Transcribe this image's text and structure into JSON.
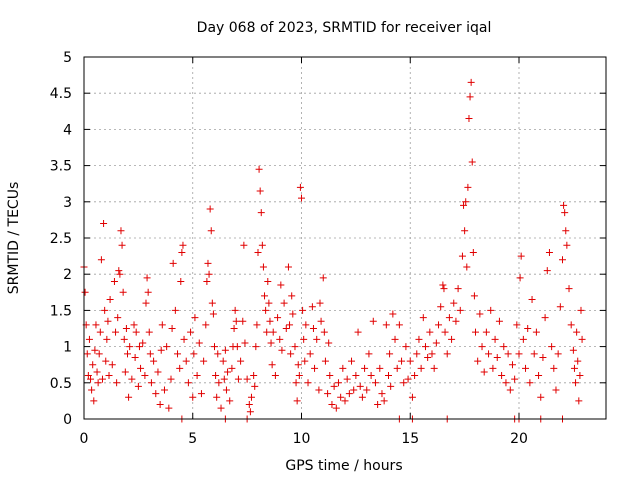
{
  "chart_data": {
    "type": "scatter",
    "title": "Day 068 of 2023, SRMTID for receiver iqal",
    "xlabel": "GPS time / hours",
    "ylabel": "SRMTID / TECUs",
    "xlim": [
      0,
      24
    ],
    "ylim": [
      0,
      5
    ],
    "xticks": [
      0,
      5,
      10,
      15,
      20
    ],
    "xtick_labels": [
      "0",
      "5",
      "10",
      "15",
      "20"
    ],
    "yticks": [
      0,
      0.5,
      1,
      1.5,
      2,
      2.5,
      3,
      3.5,
      4,
      4.5,
      5
    ],
    "ytick_labels": [
      "0",
      "0.5",
      "1",
      "1.5",
      "2",
      "2.5",
      "3",
      "3.5",
      "4",
      "4.5",
      "5"
    ],
    "grid": true,
    "marker": "plus",
    "series": [
      {
        "name": "SRMTID",
        "color": "#e00000",
        "points": [
          [
            0.0,
            2.1
          ],
          [
            0.05,
            1.75
          ],
          [
            0.1,
            1.3
          ],
          [
            0.15,
            0.9
          ],
          [
            0.2,
            0.6
          ],
          [
            0.25,
            1.1
          ],
          [
            0.3,
            0.55
          ],
          [
            0.35,
            0.4
          ],
          [
            0.4,
            0.75
          ],
          [
            0.45,
            0.25
          ],
          [
            0.5,
            0.95
          ],
          [
            0.55,
            1.3
          ],
          [
            0.6,
            0.65
          ],
          [
            0.65,
            0.5
          ],
          [
            0.7,
            0.9
          ],
          [
            0.75,
            1.2
          ],
          [
            0.8,
            2.2
          ],
          [
            0.85,
            0.55
          ],
          [
            0.9,
            2.7
          ],
          [
            0.95,
            1.5
          ],
          [
            1.0,
            0.8
          ],
          [
            1.05,
            1.1
          ],
          [
            1.1,
            1.35
          ],
          [
            1.15,
            0.6
          ],
          [
            1.2,
            1.65
          ],
          [
            1.3,
            0.75
          ],
          [
            1.4,
            1.9
          ],
          [
            1.45,
            1.2
          ],
          [
            1.5,
            0.5
          ],
          [
            1.55,
            1.4
          ],
          [
            1.6,
            2.05
          ],
          [
            1.65,
            2.0
          ],
          [
            1.7,
            2.6
          ],
          [
            1.75,
            2.4
          ],
          [
            1.8,
            1.75
          ],
          [
            1.85,
            1.1
          ],
          [
            1.9,
            0.65
          ],
          [
            1.95,
            1.25
          ],
          [
            2.0,
            0.9
          ],
          [
            2.05,
            0.3
          ],
          [
            2.1,
            1.0
          ],
          [
            2.2,
            0.55
          ],
          [
            2.3,
            1.3
          ],
          [
            2.35,
            0.85
          ],
          [
            2.4,
            1.2
          ],
          [
            2.5,
            0.45
          ],
          [
            2.55,
            1.0
          ],
          [
            2.6,
            0.7
          ],
          [
            2.7,
            1.05
          ],
          [
            2.8,
            0.6
          ],
          [
            2.85,
            1.6
          ],
          [
            2.9,
            1.95
          ],
          [
            2.95,
            1.75
          ],
          [
            3.0,
            1.2
          ],
          [
            3.05,
            0.9
          ],
          [
            3.1,
            0.5
          ],
          [
            3.2,
            0.8
          ],
          [
            3.3,
            0.35
          ],
          [
            3.4,
            0.65
          ],
          [
            3.5,
            0.2
          ],
          [
            3.55,
            0.95
          ],
          [
            3.6,
            1.3
          ],
          [
            3.7,
            0.4
          ],
          [
            3.8,
            1.0
          ],
          [
            3.9,
            0.15
          ],
          [
            4.0,
            0.55
          ],
          [
            4.05,
            1.25
          ],
          [
            4.1,
            2.15
          ],
          [
            4.2,
            1.5
          ],
          [
            4.3,
            0.9
          ],
          [
            4.4,
            0.7
          ],
          [
            4.45,
            1.9
          ],
          [
            4.5,
            2.3
          ],
          [
            4.55,
            2.4
          ],
          [
            4.6,
            1.1
          ],
          [
            4.7,
            0.8
          ],
          [
            4.8,
            0.5
          ],
          [
            4.9,
            1.2
          ],
          [
            5.0,
            0.3
          ],
          [
            5.05,
            0.9
          ],
          [
            5.1,
            1.4
          ],
          [
            5.2,
            0.6
          ],
          [
            5.3,
            1.05
          ],
          [
            5.4,
            0.35
          ],
          [
            5.5,
            0.8
          ],
          [
            5.6,
            1.3
          ],
          [
            5.65,
            1.9
          ],
          [
            5.7,
            2.15
          ],
          [
            5.75,
            2.0
          ],
          [
            5.8,
            2.9
          ],
          [
            5.85,
            2.6
          ],
          [
            5.9,
            1.6
          ],
          [
            5.95,
            1.45
          ],
          [
            6.0,
            1.0
          ],
          [
            6.05,
            0.6
          ],
          [
            6.1,
            0.3
          ],
          [
            6.15,
            0.9
          ],
          [
            6.2,
            0.5
          ],
          [
            6.3,
            0.15
          ],
          [
            6.4,
            0.8
          ],
          [
            6.45,
            0.55
          ],
          [
            6.5,
            0.95
          ],
          [
            6.55,
            0.4
          ],
          [
            6.6,
            0.65
          ],
          [
            6.7,
            0.25
          ],
          [
            6.8,
            0.7
          ],
          [
            6.85,
            1.0
          ],
          [
            6.9,
            1.25
          ],
          [
            6.95,
            1.5
          ],
          [
            7.0,
            1.35
          ],
          [
            7.05,
            1.0
          ],
          [
            7.1,
            0.55
          ],
          [
            7.2,
            0.8
          ],
          [
            7.3,
            1.35
          ],
          [
            7.35,
            2.4
          ],
          [
            7.4,
            1.05
          ],
          [
            7.5,
            0.55
          ],
          [
            7.6,
            0.2
          ],
          [
            7.65,
            0.1
          ],
          [
            7.7,
            0.3
          ],
          [
            7.8,
            0.6
          ],
          [
            7.85,
            0.45
          ],
          [
            7.9,
            1.0
          ],
          [
            7.95,
            1.3
          ],
          [
            8.0,
            2.3
          ],
          [
            8.05,
            3.45
          ],
          [
            8.1,
            3.15
          ],
          [
            8.15,
            2.85
          ],
          [
            8.2,
            2.4
          ],
          [
            8.25,
            2.1
          ],
          [
            8.3,
            1.7
          ],
          [
            8.35,
            1.5
          ],
          [
            8.4,
            1.2
          ],
          [
            8.45,
            1.9
          ],
          [
            8.5,
            1.6
          ],
          [
            8.55,
            1.35
          ],
          [
            8.6,
            1.05
          ],
          [
            8.65,
            0.75
          ],
          [
            8.7,
            1.2
          ],
          [
            8.8,
            0.6
          ],
          [
            8.9,
            1.4
          ],
          [
            9.0,
            1.1
          ],
          [
            9.05,
            1.85
          ],
          [
            9.1,
            0.95
          ],
          [
            9.2,
            1.6
          ],
          [
            9.3,
            1.25
          ],
          [
            9.4,
            2.1
          ],
          [
            9.45,
            1.3
          ],
          [
            9.5,
            0.9
          ],
          [
            9.55,
            1.7
          ],
          [
            9.6,
            1.45
          ],
          [
            9.7,
            1.0
          ],
          [
            9.75,
            0.5
          ],
          [
            9.8,
            0.25
          ],
          [
            9.85,
            0.75
          ],
          [
            9.9,
            0.6
          ],
          [
            9.95,
            3.2
          ],
          [
            10.0,
            3.05
          ],
          [
            10.05,
            1.5
          ],
          [
            10.1,
            1.1
          ],
          [
            10.15,
            0.8
          ],
          [
            10.2,
            1.3
          ],
          [
            10.3,
            0.5
          ],
          [
            10.4,
            0.9
          ],
          [
            10.5,
            1.55
          ],
          [
            10.55,
            1.25
          ],
          [
            10.6,
            0.7
          ],
          [
            10.7,
            1.1
          ],
          [
            10.8,
            0.4
          ],
          [
            10.85,
            1.6
          ],
          [
            10.9,
            1.35
          ],
          [
            11.0,
            1.95
          ],
          [
            11.05,
            1.2
          ],
          [
            11.1,
            0.8
          ],
          [
            11.2,
            0.35
          ],
          [
            11.25,
            1.05
          ],
          [
            11.3,
            0.6
          ],
          [
            11.4,
            0.2
          ],
          [
            11.5,
            0.45
          ],
          [
            11.6,
            0.15
          ],
          [
            11.7,
            0.5
          ],
          [
            11.8,
            0.3
          ],
          [
            11.9,
            0.7
          ],
          [
            12.0,
            0.25
          ],
          [
            12.1,
            0.55
          ],
          [
            12.2,
            0.35
          ],
          [
            12.3,
            0.8
          ],
          [
            12.4,
            0.4
          ],
          [
            12.5,
            0.6
          ],
          [
            12.6,
            1.2
          ],
          [
            12.7,
            0.45
          ],
          [
            12.8,
            0.3
          ],
          [
            12.9,
            0.7
          ],
          [
            13.0,
            0.4
          ],
          [
            13.1,
            0.9
          ],
          [
            13.2,
            0.6
          ],
          [
            13.3,
            1.35
          ],
          [
            13.4,
            0.5
          ],
          [
            13.5,
            0.2
          ],
          [
            13.6,
            0.7
          ],
          [
            13.7,
            0.35
          ],
          [
            13.8,
            0.25
          ],
          [
            13.9,
            1.3
          ],
          [
            14.0,
            0.6
          ],
          [
            14.05,
            0.9
          ],
          [
            14.1,
            0.45
          ],
          [
            14.2,
            1.45
          ],
          [
            14.3,
            1.1
          ],
          [
            14.4,
            0.7
          ],
          [
            14.5,
            1.3
          ],
          [
            14.6,
            0.8
          ],
          [
            14.7,
            0.5
          ],
          [
            14.8,
            1.0
          ],
          [
            14.9,
            0.55
          ],
          [
            15.0,
            0.8
          ],
          [
            15.1,
            0.3
          ],
          [
            15.2,
            0.6
          ],
          [
            15.3,
            0.9
          ],
          [
            15.4,
            1.1
          ],
          [
            15.5,
            0.7
          ],
          [
            15.6,
            1.4
          ],
          [
            15.7,
            1.0
          ],
          [
            15.8,
            0.85
          ],
          [
            15.9,
            1.2
          ],
          [
            16.0,
            0.9
          ],
          [
            16.1,
            0.7
          ],
          [
            16.2,
            1.05
          ],
          [
            16.3,
            1.3
          ],
          [
            16.4,
            1.55
          ],
          [
            16.5,
            1.85
          ],
          [
            16.55,
            1.8
          ],
          [
            16.6,
            1.2
          ],
          [
            16.7,
            0.9
          ],
          [
            16.8,
            1.4
          ],
          [
            16.9,
            1.1
          ],
          [
            17.0,
            1.6
          ],
          [
            17.1,
            1.35
          ],
          [
            17.2,
            1.8
          ],
          [
            17.3,
            1.5
          ],
          [
            17.4,
            2.25
          ],
          [
            17.45,
            2.95
          ],
          [
            17.5,
            2.6
          ],
          [
            17.55,
            3.0
          ],
          [
            17.6,
            2.1
          ],
          [
            17.65,
            3.2
          ],
          [
            17.7,
            4.15
          ],
          [
            17.75,
            4.45
          ],
          [
            17.8,
            4.65
          ],
          [
            17.85,
            3.55
          ],
          [
            17.9,
            2.3
          ],
          [
            17.95,
            1.7
          ],
          [
            18.0,
            1.2
          ],
          [
            18.1,
            0.8
          ],
          [
            18.2,
            1.45
          ],
          [
            18.3,
            1.0
          ],
          [
            18.4,
            0.65
          ],
          [
            18.5,
            1.2
          ],
          [
            18.6,
            0.9
          ],
          [
            18.7,
            1.5
          ],
          [
            18.8,
            0.7
          ],
          [
            18.9,
            1.1
          ],
          [
            19.0,
            0.85
          ],
          [
            19.1,
            1.35
          ],
          [
            19.2,
            0.6
          ],
          [
            19.3,
            1.0
          ],
          [
            19.4,
            0.5
          ],
          [
            19.5,
            0.9
          ],
          [
            19.6,
            0.4
          ],
          [
            19.7,
            0.75
          ],
          [
            19.8,
            0.55
          ],
          [
            19.9,
            1.3
          ],
          [
            20.0,
            0.9
          ],
          [
            20.05,
            1.95
          ],
          [
            20.1,
            2.25
          ],
          [
            20.2,
            1.1
          ],
          [
            20.3,
            0.7
          ],
          [
            20.4,
            1.25
          ],
          [
            20.5,
            0.5
          ],
          [
            20.6,
            1.65
          ],
          [
            20.7,
            0.9
          ],
          [
            20.8,
            1.2
          ],
          [
            20.9,
            0.6
          ],
          [
            21.0,
            0.3
          ],
          [
            21.1,
            0.85
          ],
          [
            21.2,
            1.4
          ],
          [
            21.3,
            2.05
          ],
          [
            21.4,
            2.3
          ],
          [
            21.5,
            1.0
          ],
          [
            21.6,
            0.7
          ],
          [
            21.7,
            0.4
          ],
          [
            21.8,
            0.9
          ],
          [
            21.9,
            1.55
          ],
          [
            22.0,
            2.2
          ],
          [
            22.05,
            2.95
          ],
          [
            22.1,
            2.85
          ],
          [
            22.15,
            2.6
          ],
          [
            22.2,
            2.4
          ],
          [
            22.3,
            1.8
          ],
          [
            22.4,
            1.3
          ],
          [
            22.5,
            0.95
          ],
          [
            22.55,
            0.7
          ],
          [
            22.6,
            0.5
          ],
          [
            22.65,
            1.2
          ],
          [
            22.7,
            0.8
          ],
          [
            22.75,
            0.25
          ],
          [
            22.8,
            0.6
          ],
          [
            22.85,
            1.5
          ],
          [
            22.9,
            1.1
          ],
          [
            4.5,
            0.0
          ],
          [
            6.5,
            0.0
          ],
          [
            7.5,
            0.0
          ],
          [
            14.5,
            0.0
          ],
          [
            15.1,
            0.0
          ],
          [
            16.7,
            0.0
          ],
          [
            19.8,
            0.0
          ],
          [
            20.0,
            0.0
          ],
          [
            21.0,
            0.0
          ],
          [
            22.0,
            0.0
          ]
        ]
      }
    ]
  }
}
